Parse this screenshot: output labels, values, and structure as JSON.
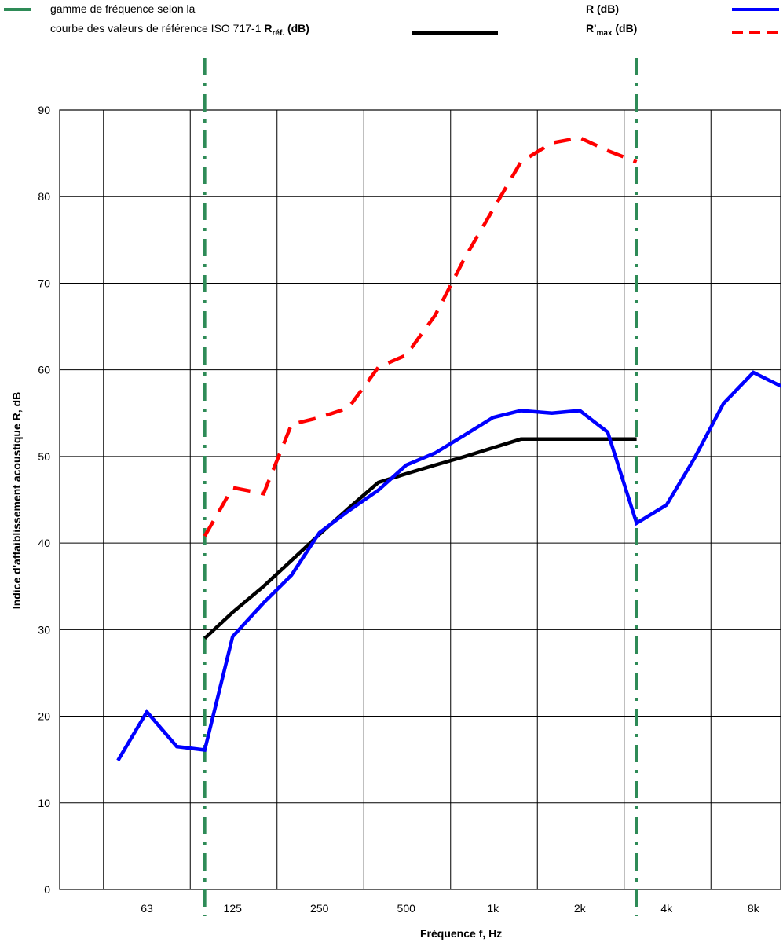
{
  "legend": {
    "band_line1": "gamme de fréquence selon la",
    "band_line2": "courbe des valeurs de référence ISO 717-1",
    "ref_main": "R",
    "ref_sub": "réf.",
    "ref_unit": "(dB)",
    "r_label": "R (dB)",
    "rmax_main": "R'",
    "rmax_sub": "max",
    "rmax_unit": "(dB)"
  },
  "colors": {
    "band": "#2e8b57",
    "reference": "#000000",
    "r": "#0000ff",
    "rmax": "#ff0000"
  },
  "chart_data": {
    "type": "line",
    "xlabel": "Fréquence f, Hz",
    "ylabel": "Indice d'affaiblissement acoustique R, dB",
    "x_scale": "log (third-octave bands)",
    "ylim": [
      0,
      90
    ],
    "y_ticks": [
      0,
      10,
      20,
      30,
      40,
      50,
      60,
      70,
      80,
      90
    ],
    "x_ticks": [
      "63",
      "125",
      "250",
      "500",
      "1k",
      "2k",
      "4k",
      "8k"
    ],
    "x_tick_freqs": [
      63,
      125,
      250,
      500,
      1000,
      2000,
      4000,
      8000
    ],
    "grid": true,
    "band_limits": [
      100,
      3150
    ],
    "series": [
      {
        "name": "R (dB)",
        "color": "#0000ff",
        "style": "solid",
        "points": [
          [
            50,
            14.9
          ],
          [
            63,
            20.5
          ],
          [
            80,
            16.5
          ],
          [
            100,
            16.1
          ],
          [
            125,
            29.2
          ],
          [
            160,
            33.1
          ],
          [
            200,
            36.3
          ],
          [
            250,
            41.2
          ],
          [
            315,
            43.7
          ],
          [
            400,
            46.1
          ],
          [
            500,
            49
          ],
          [
            630,
            50.4
          ],
          [
            800,
            52.5
          ],
          [
            1000,
            54.5
          ],
          [
            1250,
            55.3
          ],
          [
            1600,
            55
          ],
          [
            2000,
            55.3
          ],
          [
            2500,
            52.8
          ],
          [
            3150,
            42.3
          ],
          [
            4000,
            44.4
          ],
          [
            5000,
            49.8
          ],
          [
            6300,
            56.1
          ],
          [
            8000,
            59.7
          ],
          [
            10000,
            58.1
          ]
        ]
      },
      {
        "name": "R'max (dB)",
        "color": "#ff0000",
        "style": "dashed",
        "points": [
          [
            100,
            40.8
          ],
          [
            125,
            46.4
          ],
          [
            160,
            45.7
          ],
          [
            200,
            53.7
          ],
          [
            250,
            54.5
          ],
          [
            315,
            55.6
          ],
          [
            400,
            60.3
          ],
          [
            500,
            61.7
          ],
          [
            630,
            66.3
          ],
          [
            800,
            73
          ],
          [
            1000,
            78.5
          ],
          [
            1250,
            84
          ],
          [
            1600,
            86.2
          ],
          [
            2000,
            86.8
          ],
          [
            2500,
            85.3
          ],
          [
            3150,
            84
          ]
        ]
      },
      {
        "name": "Rréf. (dB)",
        "color": "#000000",
        "style": "solid",
        "points": [
          [
            100,
            29
          ],
          [
            125,
            32
          ],
          [
            160,
            35
          ],
          [
            200,
            38
          ],
          [
            250,
            41
          ],
          [
            315,
            44
          ],
          [
            400,
            47
          ],
          [
            500,
            48
          ],
          [
            630,
            49
          ],
          [
            800,
            50
          ],
          [
            1000,
            51
          ],
          [
            1250,
            52
          ],
          [
            1600,
            52
          ],
          [
            2000,
            52
          ],
          [
            2500,
            52
          ],
          [
            3150,
            52
          ]
        ]
      }
    ]
  }
}
